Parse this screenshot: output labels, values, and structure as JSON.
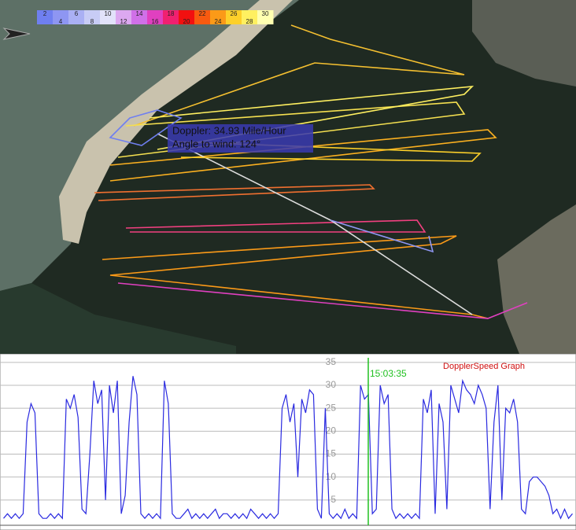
{
  "legend": {
    "ticks": [
      2,
      4,
      6,
      8,
      10,
      12,
      14,
      16,
      18,
      20,
      22,
      24,
      26,
      28,
      30
    ],
    "colors": [
      "#6f7ff0",
      "#8e96f2",
      "#aab0f4",
      "#c8ccf6",
      "#e2e2fa",
      "#dca8f0",
      "#d070e8",
      "#e040c0",
      "#f02070",
      "#f21010",
      "#f85a10",
      "#fb9a18",
      "#fdd02a",
      "#fff060",
      "#ffffb0"
    ]
  },
  "tooltip": {
    "lines": [
      "Doppler: 34.93 Mile/Hour",
      "Angle to wind: 124°"
    ]
  },
  "chart_data": {
    "type": "line",
    "title": "DopplerSpeed Graph",
    "cursor_label": "15:03:35",
    "ylim": [
      0,
      36
    ],
    "yticks": [
      5,
      10,
      15,
      20,
      25,
      30,
      35
    ],
    "grid": true,
    "series": [
      {
        "color": "#2a2ae0",
        "values": [
          1,
          2,
          1,
          2,
          1,
          2,
          22,
          26,
          24,
          2,
          1,
          1,
          2,
          1,
          2,
          1,
          27,
          25,
          28,
          23,
          3,
          2,
          15,
          31,
          26,
          29,
          5,
          30,
          24,
          31,
          2,
          6,
          22,
          32,
          28,
          2,
          1,
          2,
          1,
          2,
          1,
          31,
          26,
          2,
          1,
          1,
          2,
          3,
          1,
          2,
          1,
          2,
          1,
          2,
          3,
          1,
          2,
          2,
          1,
          2,
          1,
          2,
          1,
          3,
          2,
          1,
          2,
          1,
          2,
          1,
          2,
          25,
          28,
          22,
          26,
          10,
          27,
          24,
          29,
          28,
          3,
          1,
          25,
          2,
          1,
          2,
          1,
          3,
          1,
          2,
          1,
          30,
          27,
          28,
          2,
          3,
          30,
          26,
          28,
          3,
          1,
          2,
          1,
          2,
          1,
          2,
          1,
          27,
          24,
          29,
          2,
          26,
          22,
          3,
          30,
          27,
          24,
          31,
          29,
          28,
          26,
          30,
          28,
          25,
          3,
          22,
          30,
          5,
          25,
          24,
          27,
          22,
          3,
          2,
          9,
          10,
          10,
          9,
          8,
          6,
          2,
          3,
          1,
          3,
          1,
          2
        ]
      }
    ]
  }
}
